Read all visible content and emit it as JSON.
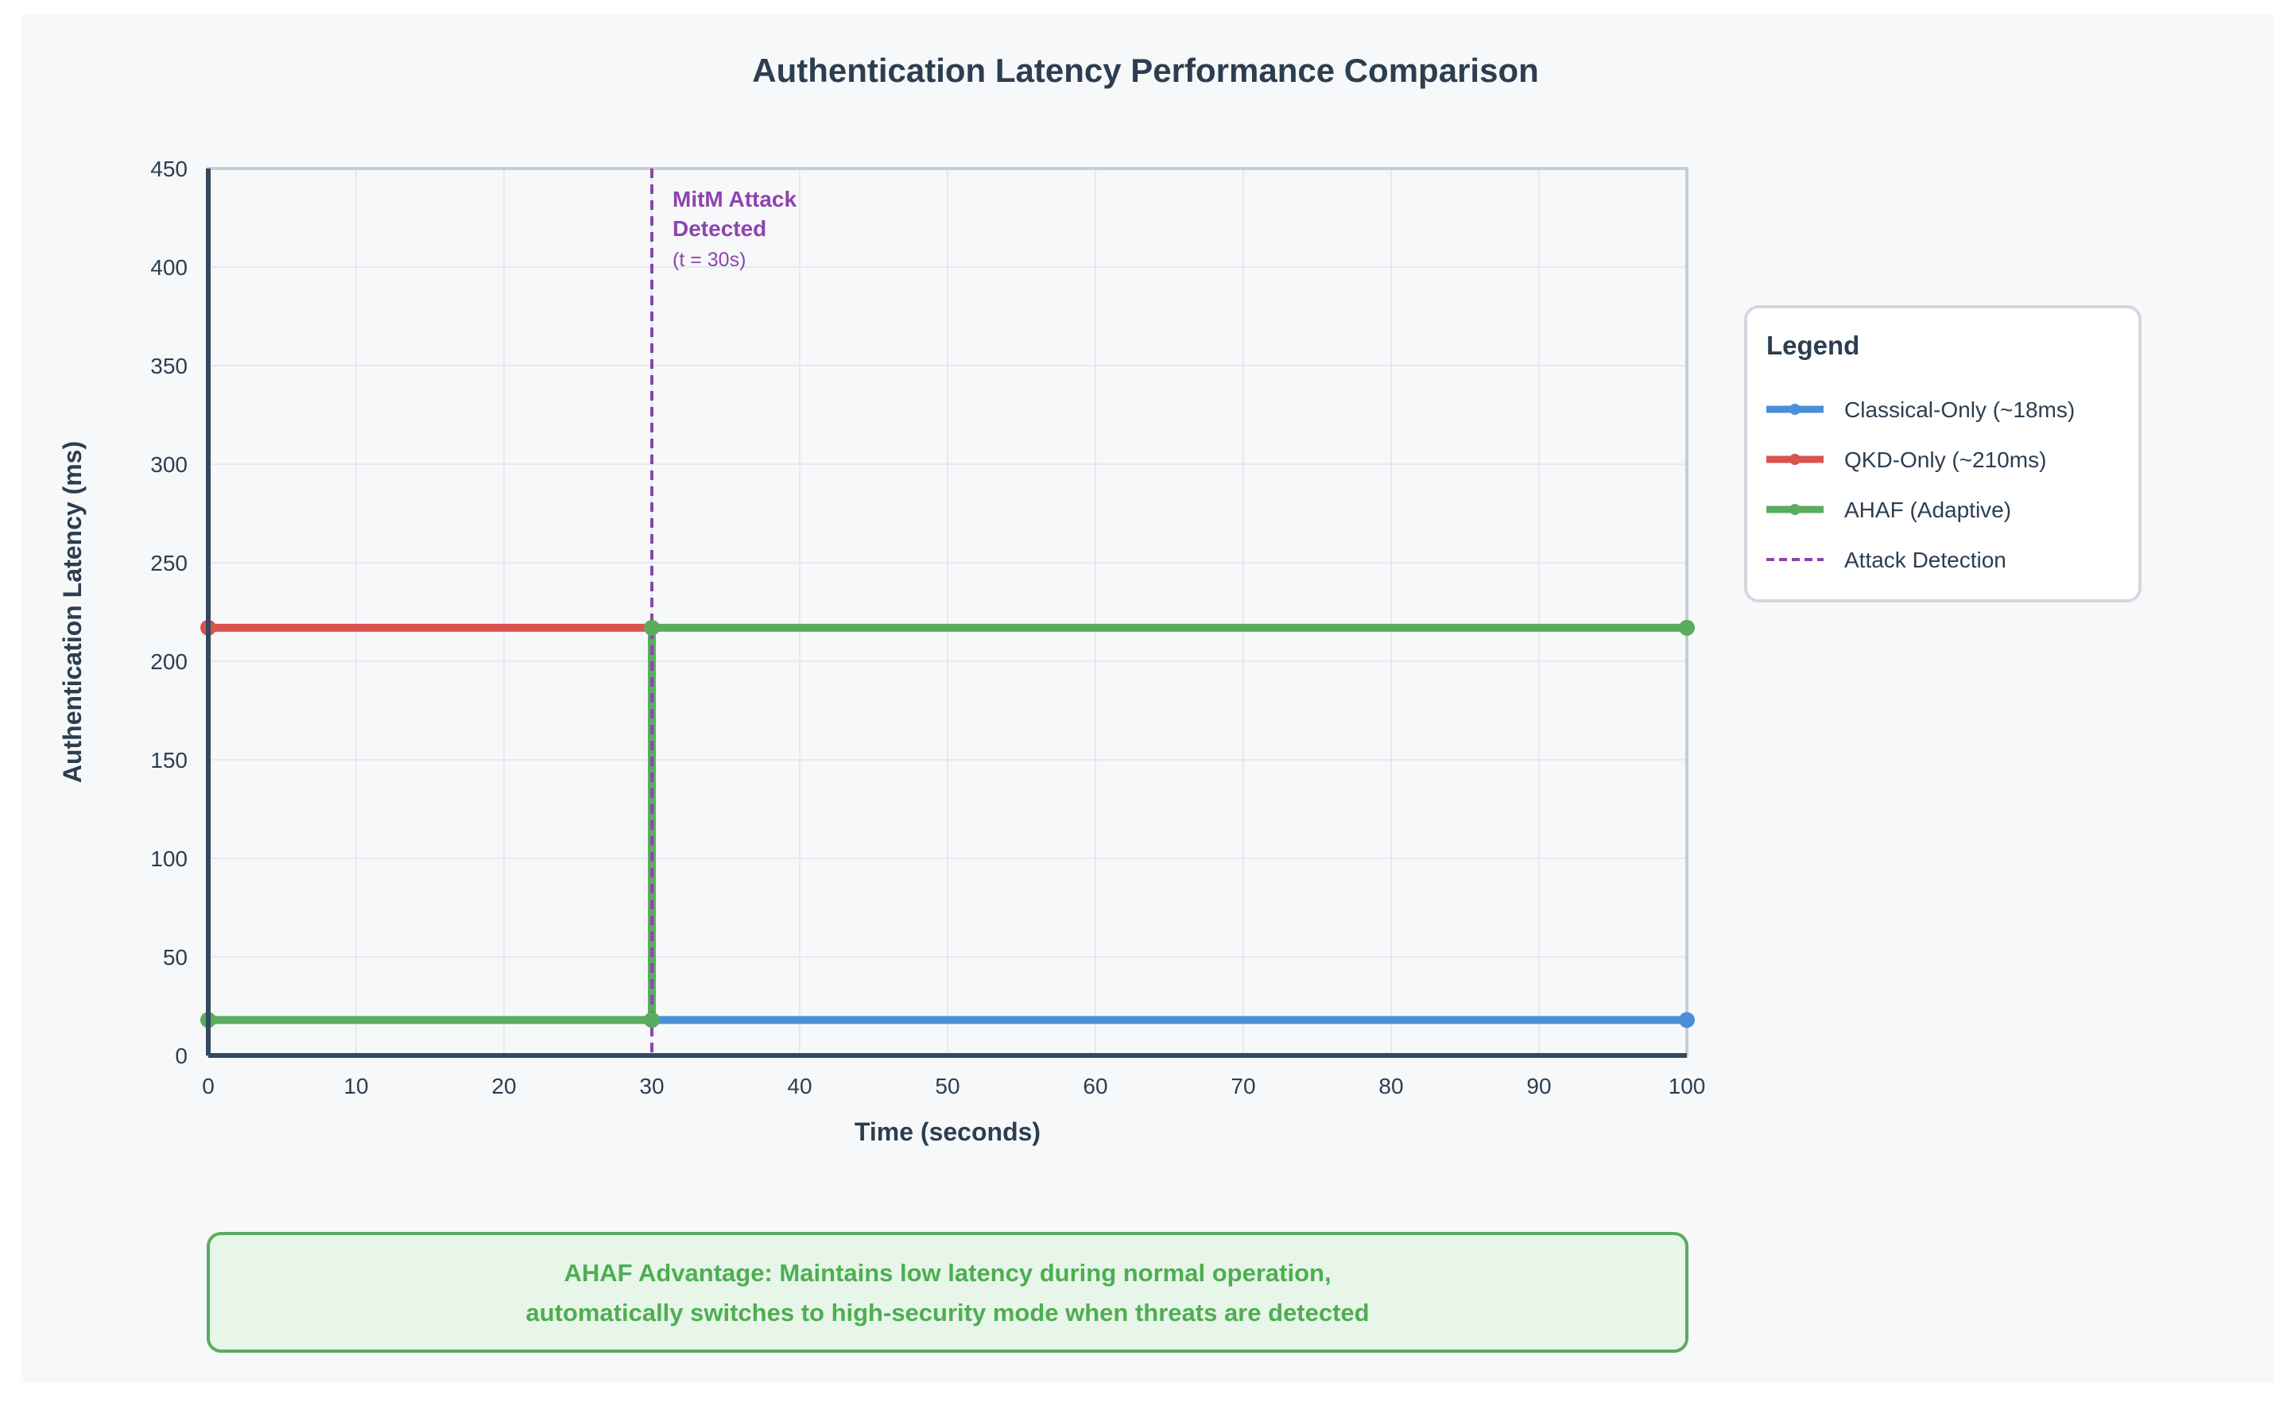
{
  "colors": {
    "background": "#f7f8fa",
    "title": "#2c3e50",
    "axis": "#34495e",
    "grid": "#e6e9ee",
    "classical": "#4a90d9",
    "qkd": "#d9534f",
    "ahaf": "#5aac5e",
    "attack": "#8e44ad",
    "banner_fill": "#e8f5e9",
    "banner_border": "#5aac5e",
    "banner_text": "#4caf50"
  },
  "chart_data": {
    "type": "line",
    "title": "Authentication Latency Performance Comparison",
    "xlabel": "Time (seconds)",
    "ylabel": "Authentication Latency (ms)",
    "xlim": [
      0,
      100
    ],
    "ylim": [
      0,
      450
    ],
    "xticks": [
      0,
      10,
      20,
      30,
      40,
      50,
      60,
      70,
      80,
      90,
      100
    ],
    "yticks": [
      0,
      50,
      100,
      150,
      200,
      250,
      300,
      350,
      400,
      450
    ],
    "grid": true,
    "legend_position": "right",
    "series": [
      {
        "name": "QKD-Only (~210ms)",
        "key": "qkd",
        "points": [
          [
            0,
            217
          ],
          [
            30,
            217
          ]
        ]
      },
      {
        "name": "Classical-Only (~18ms)",
        "key": "classical",
        "points": [
          [
            30,
            18
          ],
          [
            100,
            18
          ]
        ]
      },
      {
        "name": "AHAF (Adaptive)",
        "key": "ahaf",
        "points": [
          [
            0,
            18
          ],
          [
            30,
            18
          ],
          [
            30,
            217
          ],
          [
            100,
            217
          ]
        ]
      }
    ],
    "markers": [
      {
        "key": "qkd",
        "x": 0,
        "y": 217
      },
      {
        "key": "classical",
        "x": 100,
        "y": 18
      },
      {
        "key": "ahaf",
        "x": 0,
        "y": 18
      },
      {
        "key": "ahaf",
        "x": 30,
        "y": 18
      },
      {
        "key": "ahaf",
        "x": 30,
        "y": 217
      },
      {
        "key": "ahaf",
        "x": 100,
        "y": 217
      }
    ],
    "attack_line": {
      "x": 30,
      "label_line1": "MitM Attack",
      "label_line2": "Detected",
      "label_line3": "(t = 30s)"
    }
  },
  "legend": {
    "title": "Legend",
    "items": [
      {
        "label": "Classical-Only (~18ms)",
        "key": "classical",
        "style": "solid"
      },
      {
        "label": "QKD-Only (~210ms)",
        "key": "qkd",
        "style": "solid"
      },
      {
        "label": "AHAF (Adaptive)",
        "key": "ahaf",
        "style": "solid"
      },
      {
        "label": "Attack Detection",
        "key": "attack",
        "style": "dashed"
      }
    ]
  },
  "banner": {
    "line1": "AHAF Advantage: Maintains low latency during normal operation,",
    "line2": "automatically switches to high-security mode when threats are detected"
  }
}
